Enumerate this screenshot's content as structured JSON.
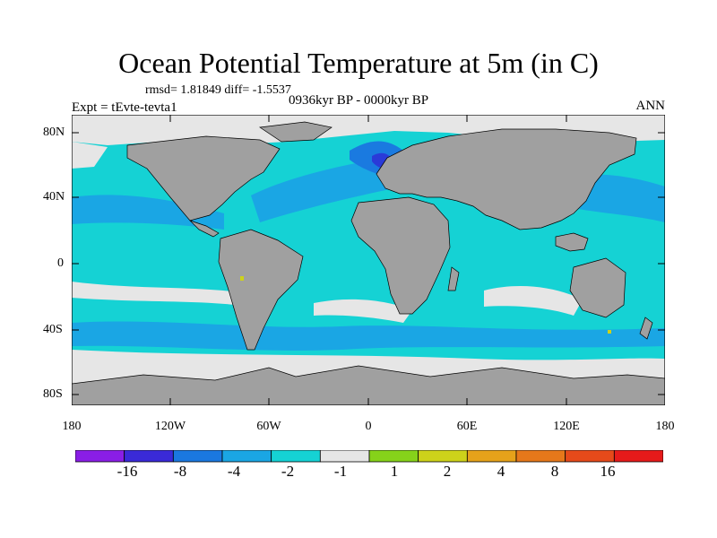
{
  "title": "Ocean Potential Temperature at 5m (in C)",
  "stats_text": "rmsd= 1.81849 diff= -1.5537",
  "experiment": "Expt = tEvte-tevta1",
  "period": "0936kyr BP - 0000kyr BP",
  "season": "ANN",
  "map": {
    "lat_ticks": [
      "80N",
      "40N",
      "0",
      "40S",
      "80S"
    ],
    "lon_ticks": [
      "180",
      "120W",
      "60W",
      "0",
      "60E",
      "120E",
      "180"
    ],
    "colors": {
      "land": "#a0a0a0",
      "ice_near_zero": "#e6e6e6",
      "cyan_-2_-1": "#15d2d4",
      "light_blue_-4_-2": "#1aa6e4",
      "blue_-8_-4": "#1a7ae0",
      "dark_blue_-16_-8": "#2a3ad8"
    }
  },
  "colorbar": {
    "colors": [
      "#8a1ee6",
      "#3a2ad8",
      "#1a78e0",
      "#1aa6e4",
      "#15d2d4",
      "#e6e6e6",
      "#86d21a",
      "#cdd21a",
      "#e6a21a",
      "#e6781a",
      "#e64a1a",
      "#e61a1a"
    ],
    "labels": [
      "-16",
      "-8",
      "-4",
      "-2",
      "-1",
      "1",
      "2",
      "4",
      "8",
      "16"
    ]
  }
}
